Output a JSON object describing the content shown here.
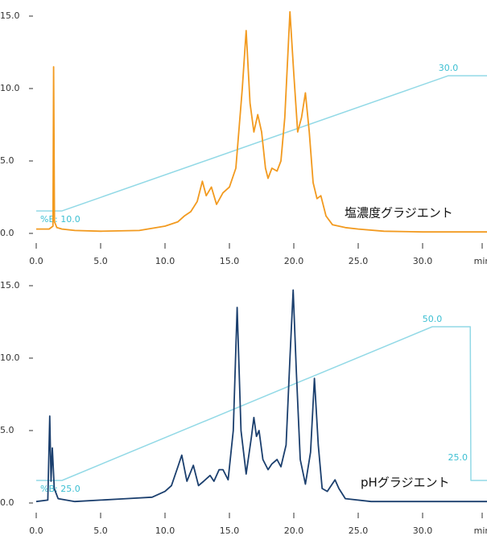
{
  "chart_data": [
    {
      "type": "line",
      "label": "塩濃度グラジエント",
      "xlim": [
        0,
        35
      ],
      "ylim": [
        -0.5,
        15.5
      ],
      "y2lim": [
        5.6,
        39.9
      ],
      "xticks": [
        {
          "value": 0,
          "label": "0.0"
        },
        {
          "value": 5,
          "label": "5.0"
        },
        {
          "value": 10,
          "label": "10.0"
        },
        {
          "value": 15,
          "label": "15.0"
        },
        {
          "value": 20,
          "label": "20.0"
        },
        {
          "value": 25,
          "label": "25.0"
        },
        {
          "value": 30,
          "label": "30.0"
        }
      ],
      "x_label": "min",
      "yticks": [
        {
          "value": 0,
          "label": "0.0"
        },
        {
          "value": 5,
          "label": "5.0"
        },
        {
          "value": 10,
          "label": "10.0"
        },
        {
          "value": 15,
          "label": "15.0"
        }
      ],
      "series": [
        {
          "color": "#f29a1f",
          "x": [
            0,
            1.0,
            1.3,
            1.35,
            1.42,
            1.6,
            2.0,
            3.0,
            5,
            8,
            10,
            11,
            11.5,
            12,
            12.5,
            12.9,
            13.2,
            13.6,
            14.0,
            14.5,
            15.0,
            15.5,
            16.0,
            16.3,
            16.6,
            16.9,
            17.2,
            17.5,
            17.8,
            18.0,
            18.3,
            18.7,
            19.0,
            19.3,
            19.7,
            20.0,
            20.3,
            20.6,
            20.9,
            21.2,
            21.5,
            21.8,
            22.1,
            22.5,
            23.0,
            24.0,
            25.0,
            27,
            30,
            35
          ],
          "values": [
            0.3,
            0.3,
            0.5,
            11.5,
            0.8,
            0.4,
            0.3,
            0.2,
            0.15,
            0.2,
            0.5,
            0.8,
            1.2,
            1.5,
            2.2,
            3.6,
            2.6,
            3.2,
            2.0,
            2.8,
            3.2,
            4.5,
            10.0,
            14.0,
            9.0,
            7.0,
            8.2,
            7.0,
            4.5,
            3.8,
            4.5,
            4.3,
            5.0,
            8.0,
            15.3,
            11.0,
            7.0,
            8.0,
            9.7,
            7.0,
            3.5,
            2.4,
            2.6,
            1.2,
            0.6,
            0.4,
            0.3,
            0.15,
            0.1,
            0.1
          ]
        },
        {
          "color": "#92d9e6",
          "axis": "y2",
          "x": [
            0,
            2,
            32,
            35
          ],
          "values": [
            10,
            10,
            30,
            30
          ],
          "value_labels": [
            "%B: 10.0",
            null,
            "30.0",
            null
          ]
        }
      ]
    },
    {
      "type": "line",
      "label": "pHグラジエント",
      "xlim": [
        0,
        35
      ],
      "ylim": [
        -0.5,
        15.5
      ],
      "y2lim": [
        20.16,
        57.85
      ],
      "xticks": [
        {
          "value": 0,
          "label": "0.0"
        },
        {
          "value": 5,
          "label": "5.0"
        },
        {
          "value": 10,
          "label": "10.0"
        },
        {
          "value": 15,
          "label": "15.0"
        },
        {
          "value": 20,
          "label": "20.0"
        },
        {
          "value": 25,
          "label": "25.0"
        },
        {
          "value": 30,
          "label": "30.0"
        }
      ],
      "x_label": "min",
      "yticks": [
        {
          "value": 0,
          "label": "0.0"
        },
        {
          "value": 5,
          "label": "5.0"
        },
        {
          "value": 10,
          "label": "10.0"
        },
        {
          "value": 15,
          "label": "15.0"
        }
      ],
      "series": [
        {
          "color": "#1b3f6e",
          "x": [
            0,
            0.9,
            1.05,
            1.15,
            1.25,
            1.4,
            1.7,
            3,
            5,
            7,
            9,
            10,
            10.5,
            11,
            11.3,
            11.7,
            12.2,
            12.6,
            13.0,
            13.5,
            13.8,
            14.2,
            14.5,
            14.9,
            15.3,
            15.6,
            15.9,
            16.3,
            16.7,
            16.9,
            17.1,
            17.3,
            17.6,
            18.0,
            18.3,
            18.7,
            19.0,
            19.4,
            19.7,
            19.95,
            20.2,
            20.5,
            20.9,
            21.3,
            21.6,
            21.9,
            22.2,
            22.6,
            23.2,
            23.5,
            24,
            26,
            35
          ],
          "values": [
            0.1,
            0.2,
            6.0,
            1.5,
            3.8,
            1.0,
            0.3,
            0.1,
            0.2,
            0.3,
            0.4,
            0.8,
            1.2,
            2.5,
            3.3,
            1.5,
            2.6,
            1.2,
            1.5,
            1.9,
            1.5,
            2.3,
            2.3,
            1.6,
            5.0,
            13.5,
            5.0,
            2.0,
            4.5,
            5.9,
            4.6,
            5.0,
            3.0,
            2.3,
            2.7,
            3.0,
            2.5,
            4.0,
            10.0,
            14.7,
            9.0,
            3.0,
            1.3,
            3.5,
            8.6,
            4.0,
            1.0,
            0.8,
            1.6,
            1.0,
            0.3,
            0.1,
            0.1
          ]
        },
        {
          "color": "#92d9e6",
          "axis": "y2",
          "x": [
            0,
            2,
            30.75,
            33.7,
            33.75,
            35
          ],
          "values": [
            25,
            25,
            50,
            50,
            25,
            25
          ],
          "value_labels": [
            "%B: 25.0",
            null,
            "50.0",
            null,
            "25.0",
            null
          ]
        }
      ]
    }
  ]
}
